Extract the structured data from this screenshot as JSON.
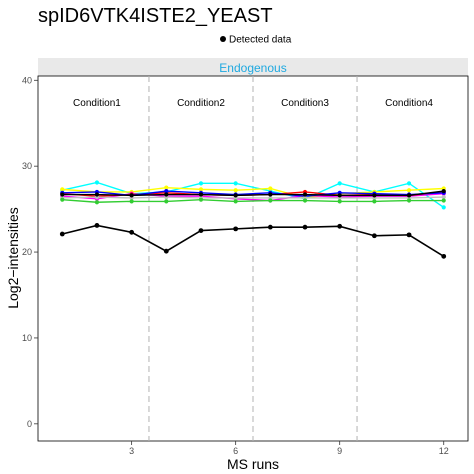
{
  "title": "spID6VTK4ISTE2_YEAST",
  "legend": {
    "label": "Detected data",
    "marker_color": "#000000"
  },
  "panel": {
    "strip_label": "Endogenous",
    "strip_color": "#1fa9e0",
    "strip_bg": "#e9e9e9"
  },
  "conditions": [
    "Condition1",
    "Condition2",
    "Condition3",
    "Condition4"
  ],
  "chart_data": {
    "type": "line",
    "title": "spID6VTK4ISTE2_YEAST",
    "xlabel": "MS runs",
    "ylabel": "Log2−intensities",
    "xlim": [
      0.3,
      12.7
    ],
    "ylim": [
      -2,
      40.5
    ],
    "xticks": [
      3,
      6,
      9,
      12
    ],
    "yticks": [
      0,
      10,
      20,
      30,
      40
    ],
    "condition_boundaries": [
      3.5,
      6.5,
      9.5
    ],
    "grid": false,
    "legend_position": "top",
    "x": [
      1,
      2,
      3,
      4,
      5,
      6,
      7,
      8,
      9,
      10,
      11,
      12
    ],
    "series": [
      {
        "color": "#000000",
        "summary": true,
        "values": [
          22.1,
          23.1,
          22.3,
          20.1,
          22.5,
          22.7,
          22.9,
          22.9,
          23.0,
          21.9,
          22.0,
          19.5
        ]
      },
      {
        "color": "#00ffff",
        "values": [
          27.2,
          28.1,
          26.8,
          27.0,
          28.0,
          28.0,
          27.1,
          26.2,
          28.0,
          27.0,
          28.0,
          25.2
        ]
      },
      {
        "color": "#ffff00",
        "values": [
          27.3,
          27.0,
          27.0,
          27.5,
          27.3,
          27.2,
          27.4,
          26.3,
          26.8,
          27.0,
          27.2,
          27.4
        ]
      },
      {
        "color": "#ff00ff",
        "values": [
          26.5,
          26.2,
          26.8,
          26.5,
          26.5,
          26.2,
          26.0,
          26.6,
          26.4,
          26.5,
          26.5,
          26.8
        ]
      },
      {
        "color": "#ff0000",
        "values": [
          26.8,
          26.5,
          26.7,
          26.9,
          26.7,
          26.6,
          26.7,
          27.0,
          26.6,
          26.7,
          26.6,
          27.0
        ]
      },
      {
        "color": "#0000ff",
        "values": [
          26.9,
          27.0,
          26.6,
          27.1,
          26.9,
          26.7,
          26.9,
          26.5,
          26.9,
          26.8,
          26.7,
          26.9
        ]
      },
      {
        "color": "#c0c0c0",
        "values": [
          26.3,
          26.4,
          26.3,
          26.4,
          26.3,
          26.3,
          26.3,
          26.3,
          26.3,
          26.3,
          26.3,
          26.4
        ]
      },
      {
        "color": "#32cd32",
        "values": [
          26.1,
          25.8,
          25.9,
          25.9,
          26.1,
          25.9,
          26.0,
          26.0,
          25.9,
          25.9,
          26.0,
          26.0
        ]
      },
      {
        "color": "#000000",
        "values": [
          26.7,
          26.7,
          26.6,
          26.7,
          26.7,
          26.6,
          26.7,
          26.7,
          26.6,
          26.6,
          26.6,
          27.1
        ]
      }
    ]
  }
}
